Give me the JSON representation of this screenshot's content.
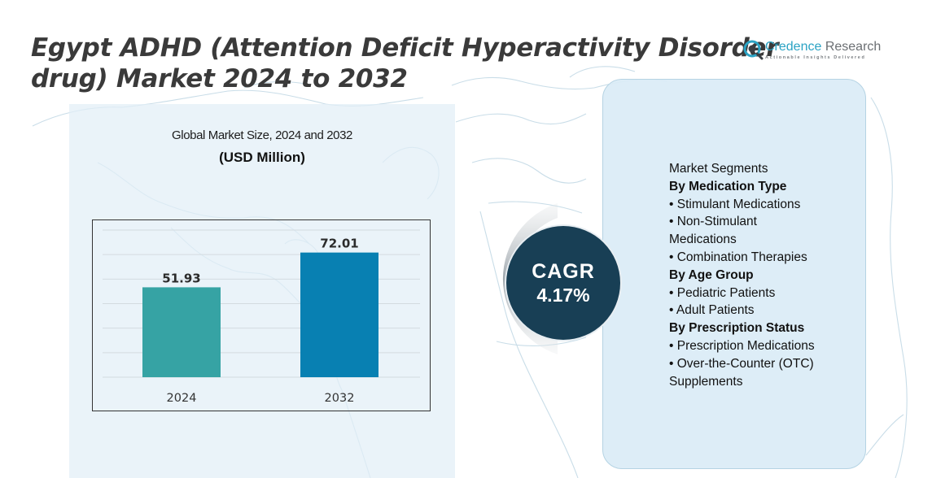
{
  "title": {
    "line1": "Egypt ADHD (Attention Deficit Hyperactivity Disorder",
    "line2": "drug) Market 2024 to 2032"
  },
  "logo": {
    "name_accent": "Credence",
    "name_rest": " Research",
    "tagline": "Actionable Insights Delivered",
    "icon": "magnifier-logo-icon",
    "accent_color": "#2ba3c4"
  },
  "chart_data": {
    "type": "bar",
    "title": "Global Market Size, 2024 and 2032",
    "subtitle": "(USD Million)",
    "categories": [
      "2024",
      "2032"
    ],
    "values": [
      51.93,
      72.01
    ],
    "value_labels": [
      "51.93",
      "72.01"
    ],
    "colors": [
      "#36a3a4",
      "#0880b2"
    ],
    "xlabel": "",
    "ylabel": "",
    "ylim": [
      0,
      85
    ],
    "grid": true,
    "gridline_count": 7,
    "legend": "none"
  },
  "cagr": {
    "label": "CAGR",
    "value": "4.17%",
    "color": "#183f55"
  },
  "segments": {
    "header": "Market Segments",
    "groups": [
      {
        "heading": "By Medication Type",
        "items": [
          "•  Stimulant Medications",
          "• Non-Stimulant Medications",
          "• Combination Therapies"
        ]
      },
      {
        "heading": "By Age Group",
        "items": [
          "• Pediatric Patients",
          "•  Adult Patients"
        ]
      },
      {
        "heading": "By Prescription Status",
        "items": [
          "• Prescription Medications",
          "• Over-the-Counter (OTC) Supplements"
        ]
      }
    ]
  }
}
